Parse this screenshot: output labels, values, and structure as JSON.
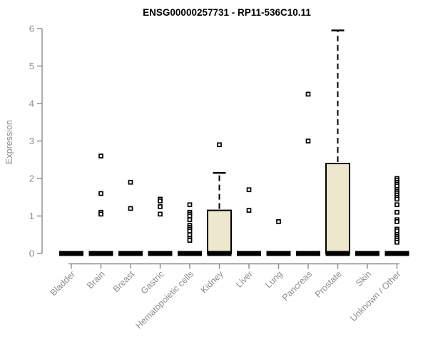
{
  "page": {
    "title": "ENSG00000257731 - RP11-536C10.11"
  },
  "chart_data": {
    "type": "box",
    "title": "ENSG00000257731 - RP11-536C10.11",
    "xlabel": "",
    "ylabel": "Expression",
    "ylim": [
      0,
      6
    ],
    "yticks": [
      0,
      1,
      2,
      3,
      4,
      5,
      6
    ],
    "grid": false,
    "legend": false,
    "categories": [
      "Bladder",
      "Brain",
      "Breast",
      "Gastric",
      "Hematopoietic cells",
      "Kidney",
      "Liver",
      "Lung",
      "Pancreas",
      "Prostate",
      "Skin",
      "Unknown / Other"
    ],
    "series": [
      {
        "name": "Bladder",
        "median": 0,
        "q1": 0,
        "q3": 0,
        "whisker_low": 0,
        "whisker_high": 0,
        "outliers": []
      },
      {
        "name": "Brain",
        "median": 0,
        "q1": 0,
        "q3": 0,
        "whisker_low": 0,
        "whisker_high": 0,
        "outliers": [
          2.6,
          1.6,
          1.1,
          1.05
        ]
      },
      {
        "name": "Breast",
        "median": 0,
        "q1": 0,
        "q3": 0,
        "whisker_low": 0,
        "whisker_high": 0,
        "outliers": [
          1.9,
          1.2
        ]
      },
      {
        "name": "Gastric",
        "median": 0,
        "q1": 0,
        "q3": 0,
        "whisker_low": 0,
        "whisker_high": 0,
        "outliers": [
          1.45,
          1.4,
          1.25,
          1.05
        ]
      },
      {
        "name": "Hematopoietic cells",
        "median": 0,
        "q1": 0,
        "q3": 0,
        "whisker_low": 0,
        "whisker_high": 0,
        "outliers": [
          1.3,
          1.1,
          1.05,
          1.0,
          0.9,
          0.75,
          0.7,
          0.65,
          0.6,
          0.5,
          0.4,
          0.35
        ]
      },
      {
        "name": "Kidney",
        "median": 0,
        "q1": 0,
        "q3": 1.15,
        "whisker_low": 0,
        "whisker_high": 2.15,
        "outliers": [
          2.9
        ]
      },
      {
        "name": "Liver",
        "median": 0,
        "q1": 0,
        "q3": 0,
        "whisker_low": 0,
        "whisker_high": 0,
        "outliers": [
          1.7,
          1.15
        ]
      },
      {
        "name": "Lung",
        "median": 0,
        "q1": 0,
        "q3": 0,
        "whisker_low": 0,
        "whisker_high": 0,
        "outliers": [
          0.85
        ]
      },
      {
        "name": "Pancreas",
        "median": 0,
        "q1": 0,
        "q3": 0,
        "whisker_low": 0,
        "whisker_high": 0,
        "outliers": [
          4.25,
          3.0
        ]
      },
      {
        "name": "Prostate",
        "median": 0,
        "q1": 0,
        "q3": 2.4,
        "whisker_low": 0,
        "whisker_high": 5.95,
        "outliers": []
      },
      {
        "name": "Skin",
        "median": 0,
        "q1": 0,
        "q3": 0,
        "whisker_low": 0,
        "whisker_high": 0,
        "outliers": []
      },
      {
        "name": "Unknown / Other",
        "median": 0,
        "q1": 0,
        "q3": 0,
        "whisker_low": 0,
        "whisker_high": 0,
        "outliers": [
          2.0,
          1.95,
          1.9,
          1.85,
          1.8,
          1.7,
          1.65,
          1.6,
          1.55,
          1.5,
          1.45,
          1.3,
          1.1,
          0.9,
          0.85,
          0.65,
          0.6,
          0.5,
          0.45,
          0.4,
          0.35,
          0.3
        ]
      }
    ],
    "colors": {
      "background": "#FFFFFF",
      "title": "#000000",
      "axis": "#8C8C8C",
      "tick_label": "#8C8C8C",
      "box_fill": "#EDE7CE",
      "box_stroke": "#000000",
      "median_bar": "#000000",
      "outlier_fill": "#FFFFFF",
      "outlier_stroke": "#000000"
    }
  }
}
